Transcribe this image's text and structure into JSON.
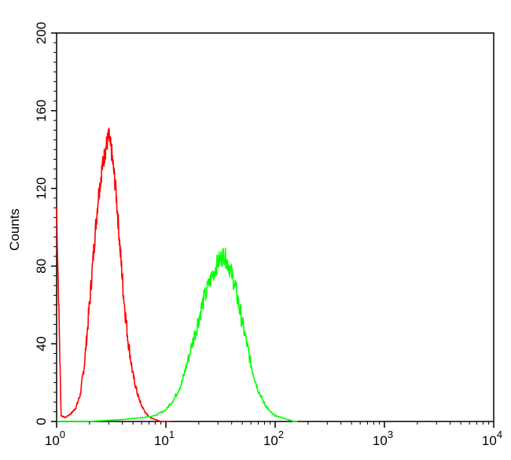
{
  "chart_data": {
    "type": "line",
    "title": "",
    "xlabel": "",
    "ylabel": "Counts",
    "x_scale": "log",
    "xlim": [
      1,
      10000
    ],
    "ylim": [
      0,
      200
    ],
    "x_ticks": [
      {
        "value": 1,
        "base": "10",
        "exp": "0"
      },
      {
        "value": 10,
        "base": "10",
        "exp": "1"
      },
      {
        "value": 100,
        "base": "10",
        "exp": "2"
      },
      {
        "value": 1000,
        "base": "10",
        "exp": "3"
      },
      {
        "value": 10000,
        "base": "10",
        "exp": "4"
      }
    ],
    "y_ticks": [
      {
        "value": 0,
        "label": "0"
      },
      {
        "value": 40,
        "label": "40"
      },
      {
        "value": 80,
        "label": "80"
      },
      {
        "value": 120,
        "label": "120"
      },
      {
        "value": 160,
        "label": "160"
      },
      {
        "value": 200,
        "label": "200"
      }
    ],
    "grid": false,
    "legend": "none",
    "series": [
      {
        "color": "#ff0000",
        "x": [
          1.0,
          1.1,
          1.2,
          1.35,
          1.5,
          1.65,
          1.8,
          2.0,
          2.2,
          2.4,
          2.6,
          2.8,
          3.0,
          3.2,
          3.5,
          3.8,
          4.1,
          4.5,
          5.0,
          5.5,
          6.0,
          6.6,
          7.2,
          8.0,
          9.0,
          10.0,
          11.0
        ],
        "y": [
          110,
          3,
          2,
          4,
          7,
          14,
          30,
          60,
          90,
          115,
          130,
          140,
          147,
          138,
          118,
          90,
          65,
          42,
          24,
          14,
          8,
          4,
          2,
          1,
          0,
          0,
          0
        ]
      },
      {
        "color": "#00ff00",
        "x": [
          1.0,
          2.0,
          4.0,
          6.0,
          8.0,
          10.0,
          12.0,
          14.0,
          16.0,
          19.0,
          22.0,
          26.0,
          30.0,
          34.0,
          38.0,
          43.0,
          48.0,
          55.0,
          62.0,
          70.0,
          80.0,
          90.0,
          100.0,
          115.0,
          130.0,
          150.0,
          160.0
        ],
        "y": [
          0,
          0,
          1,
          2,
          3,
          6,
          12,
          20,
          32,
          48,
          62,
          74,
          82,
          86,
          80,
          70,
          56,
          40,
          26,
          16,
          9,
          5,
          3,
          2,
          1,
          0,
          0
        ]
      }
    ]
  }
}
